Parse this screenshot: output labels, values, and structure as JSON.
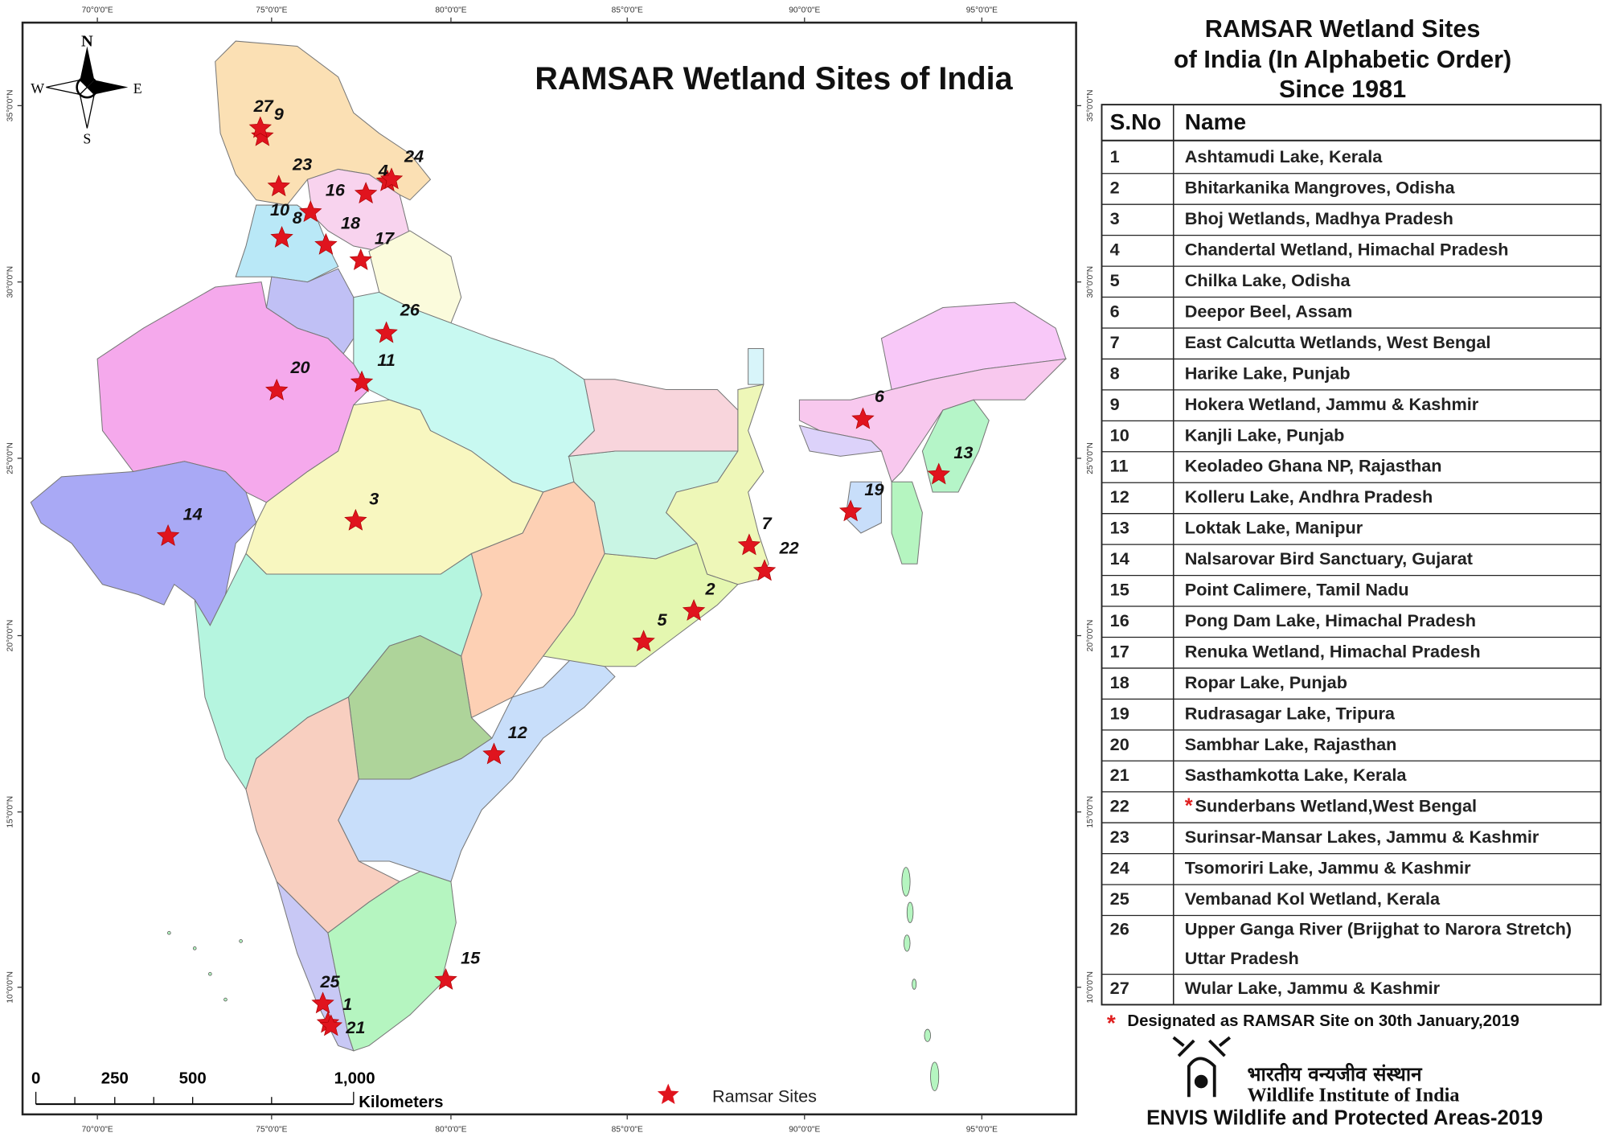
{
  "map": {
    "title": "RAMSAR Wetland Sites of India",
    "compass": {
      "north": "N",
      "south": "S",
      "east": "E",
      "west": "W"
    },
    "longitude_labels": [
      "70°0'0\"E",
      "75°0'0\"E",
      "80°0'0\"E",
      "85°0'0\"E",
      "90°0'0\"E",
      "95°0'0\"E"
    ],
    "latitude_labels": [
      "35°0'0\"N",
      "30°0'0\"N",
      "25°0'0\"N",
      "20°0'0\"N",
      "15°0'0\"N",
      "10°0'0\"N"
    ],
    "scale_bar": {
      "labels": [
        "0",
        "250",
        "500",
        "1,000"
      ],
      "unit": "Kilometers"
    },
    "legend": "Ramsar Sites",
    "sites": [
      "1",
      "2",
      "3",
      "4",
      "5",
      "6",
      "7",
      "8",
      "9",
      "10",
      "11",
      "12",
      "13",
      "14",
      "15",
      "16",
      "17",
      "18",
      "19",
      "20",
      "21",
      "22",
      "23",
      "24",
      "25",
      "26",
      "27"
    ]
  },
  "panel": {
    "title": [
      "RAMSAR Wetland Sites",
      "of India (In Alphabetic Order)",
      "Since 1981"
    ],
    "table": {
      "headers": [
        "S.No",
        "Name"
      ],
      "rows": [
        [
          "1",
          [
            "Ashtamudi Lake, Kerala"
          ]
        ],
        [
          "2",
          [
            "Bhitarkanika Mangroves, Odisha"
          ]
        ],
        [
          "3",
          [
            "Bhoj Wetlands, Madhya Pradesh"
          ]
        ],
        [
          "4",
          [
            "Chandertal Wetland, Himachal Pradesh"
          ]
        ],
        [
          "5",
          [
            "Chilka Lake, Odisha"
          ]
        ],
        [
          "6",
          [
            "Deepor Beel, Assam"
          ]
        ],
        [
          "7",
          [
            "East Calcutta Wetlands, West Bengal"
          ]
        ],
        [
          "8",
          [
            "Harike Lake, Punjab"
          ]
        ],
        [
          "9",
          [
            "Hokera Wetland, Jammu & Kashmir"
          ]
        ],
        [
          "10",
          [
            "Kanjli Lake, Punjab"
          ]
        ],
        [
          "11",
          [
            "Keoladeo Ghana NP, Rajasthan"
          ]
        ],
        [
          "12",
          [
            "Kolleru Lake, Andhra Pradesh"
          ]
        ],
        [
          "13",
          [
            "Loktak Lake, Manipur"
          ]
        ],
        [
          "14",
          [
            "Nalsarovar Bird Sanctuary, Gujarat"
          ]
        ],
        [
          "15",
          [
            "Point Calimere, Tamil Nadu"
          ]
        ],
        [
          "16",
          [
            "Pong Dam Lake, Himachal Pradesh"
          ]
        ],
        [
          "17",
          [
            "Renuka Wetland, Himachal Pradesh"
          ]
        ],
        [
          "18",
          [
            "Ropar Lake, Punjab"
          ]
        ],
        [
          "19",
          [
            "Rudrasagar Lake, Tripura"
          ]
        ],
        [
          "20",
          [
            "Sambhar Lake, Rajasthan"
          ]
        ],
        [
          "21",
          [
            "Sasthamkotta Lake, Kerala"
          ]
        ],
        [
          "22",
          [
            "Sunderbans Wetland,West Bengal"
          ]
        ],
        [
          "23",
          [
            "Surinsar-Mansar Lakes, Jammu & Kashmir"
          ]
        ],
        [
          "24",
          [
            "Tsomoriri Lake, Jammu & Kashmir"
          ]
        ],
        [
          "25",
          [
            "Vembanad Kol Wetland, Kerala"
          ]
        ],
        [
          "26",
          [
            "Upper Ganga River (Brijghat to Narora Stretch)",
            "Uttar Pradesh"
          ]
        ],
        [
          "27",
          [
            "Wular Lake,  Jammu & Kashmir"
          ]
        ]
      ]
    },
    "footnote": "Designated as RAMSAR Site on 30th January,2019",
    "logo": {
      "hindi": "भारतीय वन्यजीव संस्थान",
      "english": "Wildlife Institute of India"
    },
    "credit": "ENVIS Wildlife and Protected Areas-2019"
  }
}
